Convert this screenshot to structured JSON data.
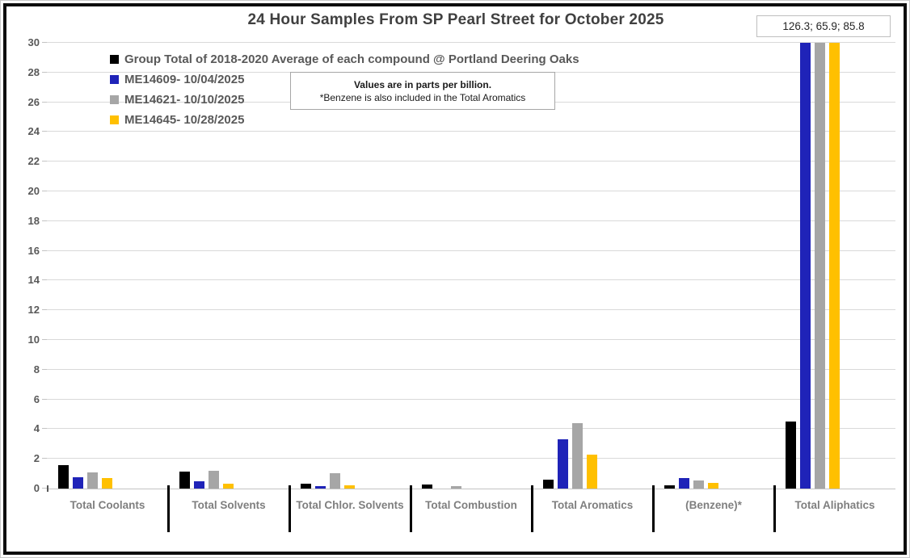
{
  "title": "24 Hour Samples From SP Pearl Street for October 2025",
  "note_box": {
    "line1": "Values are in parts per billion.",
    "line2": "*Benzene is also included in the Total Aromatics"
  },
  "offscale_box": {
    "values": "126.3; 65.9; 85.8"
  },
  "colors": {
    "black_series": "#000000",
    "blue_series": "#1f23b8",
    "gray_series": "#a6a6a6",
    "yellow_series": "#ffc000",
    "gridline": "#d9d9d9",
    "title_text": "#404040",
    "axis_text": "#595959",
    "category_text": "#7f7f7f"
  },
  "chart_data": {
    "type": "bar",
    "title": "24 Hour Samples From SP Pearl Street for October 2025",
    "categories": [
      "Total Coolants",
      "Total Solvents",
      "Total Chlor. Solvents",
      "Total Combustion",
      "Total Aromatics",
      "(Benzene)*",
      "Total Aliphatics"
    ],
    "series": [
      {
        "name": "Group Total of 2018-2020 Average of each compound @ Portland Deering Oaks",
        "color": "#000000",
        "values": [
          1.55,
          1.15,
          0.35,
          0.25,
          0.6,
          0.2,
          4.5
        ]
      },
      {
        "name": "ME14609- 10/04/2025",
        "color": "#1f23b8",
        "values": [
          0.75,
          0.5,
          0.15,
          0,
          3.3,
          0.7,
          126.3
        ]
      },
      {
        "name": "ME14621- 10/10/2025",
        "color": "#a6a6a6",
        "values": [
          1.1,
          1.2,
          1.05,
          0.15,
          4.4,
          0.55,
          65.9
        ]
      },
      {
        "name": "ME14645- 10/28/2025",
        "color": "#ffc000",
        "values": [
          0.7,
          0.3,
          0.2,
          0,
          2.3,
          0.4,
          85.8
        ]
      }
    ],
    "xlabel": "",
    "ylabel": "",
    "ylim": [
      0,
      30
    ],
    "ytick_step": 2,
    "grid": true,
    "legend_position": "top-left-inside",
    "annotation": "Values are in parts per billion. *Benzene is also included in the Total Aromatics",
    "offscale_note": "126.3; 65.9; 85.8"
  }
}
